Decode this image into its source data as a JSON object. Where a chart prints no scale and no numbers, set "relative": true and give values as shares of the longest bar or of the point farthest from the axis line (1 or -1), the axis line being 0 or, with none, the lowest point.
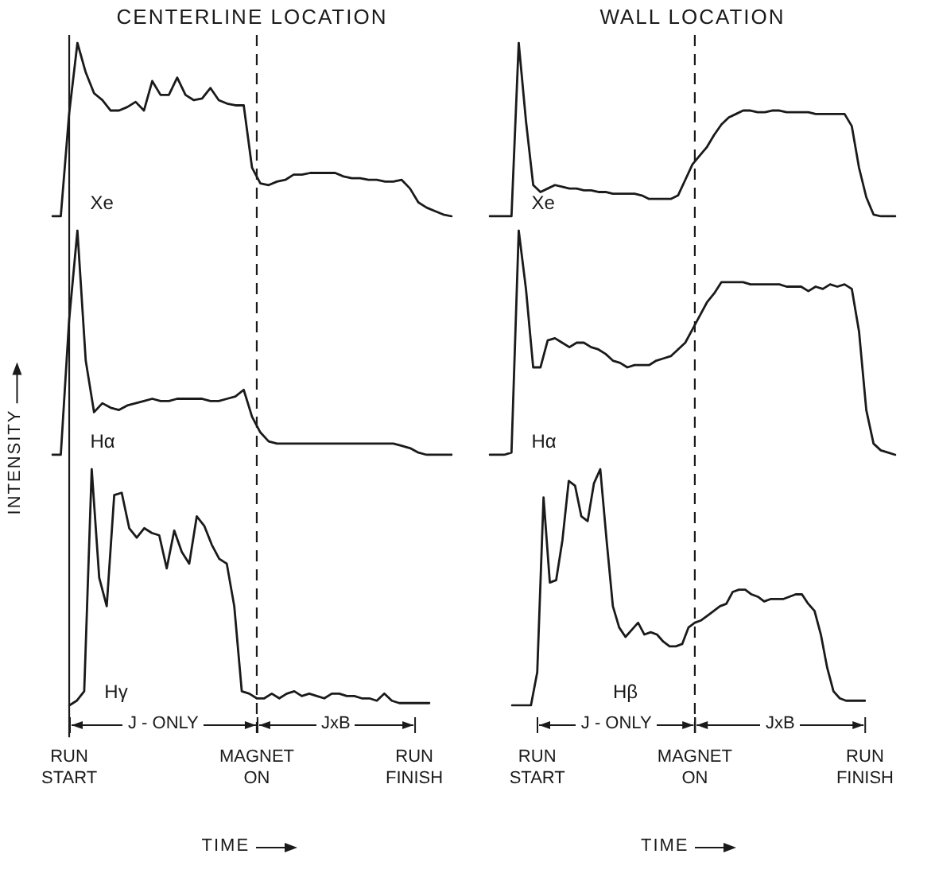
{
  "chart_data": [
    {
      "type": "line",
      "title": "CENTERLINE LOCATION",
      "relative": true,
      "tick_labels": false,
      "categories": [
        null,
        null,
        null,
        null,
        null,
        null,
        null,
        null,
        null,
        null,
        null,
        null,
        null,
        null,
        null,
        null,
        null,
        null,
        null,
        null,
        null,
        null,
        null,
        null,
        null,
        null,
        null,
        null,
        null,
        null,
        null,
        null,
        null,
        null,
        null,
        null,
        null,
        null,
        null,
        null,
        null,
        null,
        null,
        null,
        null,
        null,
        null,
        null,
        null
      ],
      "series": [
        {
          "name": "Xe",
          "color": "#1a1a1a",
          "values": [
            0,
            0,
            0.59,
            1.0,
            0.83,
            0.71,
            0.67,
            0.61,
            0.61,
            0.63,
            0.66,
            0.61,
            0.78,
            0.7,
            0.7,
            0.8,
            0.7,
            0.67,
            0.68,
            0.74,
            0.67,
            0.65,
            0.64,
            0.64,
            0.28,
            0.19,
            0.18,
            0.2,
            0.21,
            0.24,
            0.24,
            0.25,
            0.25,
            0.25,
            0.25,
            0.23,
            0.22,
            0.22,
            0.21,
            0.21,
            0.2,
            0.2,
            0.21,
            0.16,
            0.08,
            0.05,
            0.03,
            0.01,
            0
          ]
        }
      ]
    },
    {
      "type": "line",
      "title": "WALL LOCATION",
      "relative": true,
      "tick_labels": false,
      "categories": [
        null,
        null,
        null,
        null,
        null,
        null,
        null,
        null,
        null,
        null,
        null,
        null,
        null,
        null,
        null,
        null,
        null,
        null,
        null,
        null,
        null,
        null,
        null,
        null,
        null,
        null,
        null,
        null,
        null,
        null,
        null,
        null,
        null,
        null,
        null,
        null,
        null,
        null,
        null,
        null,
        null,
        null,
        null,
        null,
        null,
        null,
        null,
        null,
        null,
        null,
        null,
        null,
        null,
        null,
        null,
        null,
        null
      ],
      "series": [
        {
          "name": "Xe",
          "color": "#1a1a1a",
          "values": [
            0,
            0,
            0,
            0,
            1.0,
            0.55,
            0.18,
            0.14,
            0.16,
            0.18,
            0.17,
            0.16,
            0.16,
            0.15,
            0.15,
            0.14,
            0.14,
            0.13,
            0.13,
            0.13,
            0.13,
            0.12,
            0.1,
            0.1,
            0.1,
            0.1,
            0.12,
            0.21,
            0.3,
            0.35,
            0.4,
            0.47,
            0.53,
            0.57,
            0.59,
            0.61,
            0.61,
            0.6,
            0.6,
            0.61,
            0.61,
            0.6,
            0.6,
            0.6,
            0.6,
            0.59,
            0.59,
            0.59,
            0.59,
            0.59,
            0.52,
            0.28,
            0.11,
            0.01,
            0,
            0,
            0
          ]
        }
      ]
    },
    {
      "type": "line",
      "ylabel": "INTENSITY",
      "relative": true,
      "tick_labels": false,
      "categories": [
        null,
        null,
        null,
        null,
        null,
        null,
        null,
        null,
        null,
        null,
        null,
        null,
        null,
        null,
        null,
        null,
        null,
        null,
        null,
        null,
        null,
        null,
        null,
        null,
        null,
        null,
        null,
        null,
        null,
        null,
        null,
        null,
        null,
        null,
        null,
        null,
        null,
        null,
        null,
        null,
        null,
        null,
        null,
        null,
        null,
        null,
        null,
        null,
        null
      ],
      "series": [
        {
          "name": "Hα",
          "color": "#1a1a1a",
          "values": [
            0,
            0,
            0.6,
            1.0,
            0.42,
            0.19,
            0.23,
            0.21,
            0.2,
            0.22,
            0.23,
            0.24,
            0.25,
            0.24,
            0.24,
            0.25,
            0.25,
            0.25,
            0.25,
            0.24,
            0.24,
            0.25,
            0.26,
            0.29,
            0.17,
            0.1,
            0.06,
            0.05,
            0.05,
            0.05,
            0.05,
            0.05,
            0.05,
            0.05,
            0.05,
            0.05,
            0.05,
            0.05,
            0.05,
            0.05,
            0.05,
            0.05,
            0.04,
            0.03,
            0.01,
            0,
            0,
            0,
            0
          ]
        }
      ]
    },
    {
      "type": "line",
      "relative": true,
      "tick_labels": false,
      "categories": [
        null,
        null,
        null,
        null,
        null,
        null,
        null,
        null,
        null,
        null,
        null,
        null,
        null,
        null,
        null,
        null,
        null,
        null,
        null,
        null,
        null,
        null,
        null,
        null,
        null,
        null,
        null,
        null,
        null,
        null,
        null,
        null,
        null,
        null,
        null,
        null,
        null,
        null,
        null,
        null,
        null,
        null,
        null,
        null,
        null,
        null,
        null,
        null,
        null,
        null,
        null,
        null,
        null,
        null,
        null,
        null,
        null
      ],
      "series": [
        {
          "name": "Hα",
          "color": "#1a1a1a",
          "values": [
            0,
            0,
            0,
            0.01,
            1.0,
            0.74,
            0.39,
            0.39,
            0.51,
            0.52,
            0.5,
            0.48,
            0.5,
            0.5,
            0.48,
            0.47,
            0.45,
            0.42,
            0.41,
            0.39,
            0.4,
            0.4,
            0.4,
            0.42,
            0.43,
            0.44,
            0.47,
            0.5,
            0.56,
            0.62,
            0.68,
            0.72,
            0.77,
            0.77,
            0.77,
            0.77,
            0.76,
            0.76,
            0.76,
            0.76,
            0.76,
            0.75,
            0.75,
            0.75,
            0.73,
            0.75,
            0.74,
            0.76,
            0.75,
            0.76,
            0.74,
            0.55,
            0.2,
            0.05,
            0.02,
            0.01,
            0
          ]
        }
      ]
    },
    {
      "type": "line",
      "xlabel": "TIME",
      "relative": true,
      "tick_labels": "x",
      "categories": [
        "RUN START",
        null,
        null,
        null,
        null,
        null,
        null,
        null,
        null,
        null,
        null,
        null,
        null,
        null,
        null,
        null,
        null,
        null,
        null,
        null,
        null,
        null,
        null,
        null,
        null,
        "MAGNET ON",
        null,
        null,
        null,
        null,
        null,
        null,
        null,
        null,
        null,
        null,
        null,
        null,
        null,
        null,
        null,
        null,
        null,
        null,
        null,
        null,
        "RUN FINISH",
        null,
        null
      ],
      "annotations": [
        "J - ONLY",
        "JxB"
      ],
      "series": [
        {
          "name": "Hγ",
          "color": "#1a1a1a",
          "values": [
            0,
            0.02,
            0.06,
            1.0,
            0.54,
            0.42,
            0.89,
            0.9,
            0.75,
            0.71,
            0.75,
            0.73,
            0.72,
            0.58,
            0.74,
            0.65,
            0.6,
            0.8,
            0.76,
            0.68,
            0.62,
            0.6,
            0.42,
            0.06,
            0.05,
            0.03,
            0.03,
            0.05,
            0.03,
            0.05,
            0.06,
            0.04,
            0.05,
            0.04,
            0.03,
            0.05,
            0.05,
            0.04,
            0.04,
            0.03,
            0.03,
            0.02,
            0.05,
            0.02,
            0.01,
            0.01,
            0.01,
            0.01,
            0.01
          ]
        }
      ],
      "ref_lines": [
        {
          "axis": "x",
          "value": "RUN START"
        },
        {
          "axis": "x",
          "value": "MAGNET ON",
          "line_style": "dashed"
        }
      ]
    },
    {
      "type": "line",
      "xlabel": "TIME",
      "relative": true,
      "tick_labels": "x",
      "categories": [
        null,
        null,
        null,
        null,
        "RUN START",
        null,
        null,
        null,
        null,
        null,
        null,
        null,
        null,
        null,
        null,
        null,
        null,
        null,
        null,
        null,
        null,
        null,
        null,
        null,
        null,
        null,
        null,
        null,
        null,
        "MAGNET ON",
        null,
        null,
        null,
        null,
        null,
        null,
        null,
        null,
        null,
        null,
        null,
        null,
        null,
        null,
        null,
        null,
        null,
        null,
        null,
        null,
        null,
        null,
        null,
        null,
        null,
        null,
        "RUN FINISH"
      ],
      "annotations": [
        "J - ONLY",
        "JxB"
      ],
      "series": [
        {
          "name": "Hβ",
          "color": "#1a1a1a",
          "values": [
            0,
            0,
            0,
            0,
            0.14,
            0.88,
            0.52,
            0.53,
            0.7,
            0.95,
            0.93,
            0.8,
            0.78,
            0.94,
            1.0,
            0.7,
            0.42,
            0.33,
            0.29,
            0.32,
            0.35,
            0.3,
            0.31,
            0.3,
            0.27,
            0.25,
            0.25,
            0.26,
            0.33,
            0.35,
            0.36,
            0.38,
            0.4,
            0.42,
            0.43,
            0.48,
            0.49,
            0.49,
            0.47,
            0.46,
            0.44,
            0.45,
            0.45,
            0.45,
            0.46,
            0.47,
            0.47,
            0.43,
            0.4,
            0.3,
            0.16,
            0.06,
            0.03,
            0.02,
            0.02,
            0.02,
            0.02
          ]
        }
      ],
      "ref_lines": [
        {
          "axis": "x",
          "value": "MAGNET ON",
          "line_style": "dashed"
        }
      ]
    }
  ]
}
